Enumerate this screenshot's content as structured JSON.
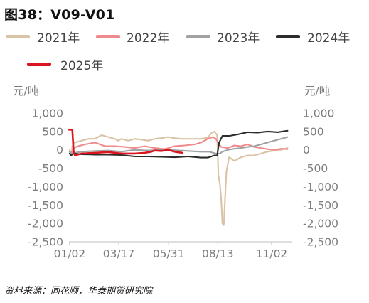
{
  "title": "图38：V09-V01",
  "source": "资料来源：同花顺，华泰期货研究院",
  "chart_data": {
    "type": "line",
    "title": "图38：V09-V01",
    "y_unit_left": "元/吨",
    "y_unit_right": "元/吨",
    "ylim": [
      -2500,
      1000
    ],
    "yticks": [
      1000,
      500,
      0,
      -500,
      -1000,
      -1500,
      -2000,
      -2500
    ],
    "ytick_labels": [
      "1,000",
      "500",
      "0",
      "-500",
      "-1,000",
      "-1,500",
      "-2,000",
      "-2,500"
    ],
    "xlim": [
      1,
      336
    ],
    "xticks": [
      {
        "label": "01/02",
        "day": 2
      },
      {
        "label": "03/17",
        "day": 76
      },
      {
        "label": "05/31",
        "day": 151
      },
      {
        "label": "08/13",
        "day": 225
      },
      {
        "label": "11/02",
        "day": 306
      }
    ],
    "grid": false,
    "legend_position": "top",
    "series": [
      {
        "name": "2021年",
        "color": "#d9c3a5",
        "points": [
          [
            2,
            0
          ],
          [
            5,
            -150
          ],
          [
            6,
            100
          ],
          [
            10,
            200
          ],
          [
            20,
            250
          ],
          [
            30,
            300
          ],
          [
            40,
            300
          ],
          [
            50,
            400
          ],
          [
            60,
            350
          ],
          [
            70,
            300
          ],
          [
            75,
            250
          ],
          [
            80,
            300
          ],
          [
            90,
            250
          ],
          [
            100,
            300
          ],
          [
            110,
            280
          ],
          [
            120,
            250
          ],
          [
            130,
            300
          ],
          [
            140,
            320
          ],
          [
            150,
            350
          ],
          [
            160,
            320
          ],
          [
            170,
            300
          ],
          [
            180,
            300
          ],
          [
            190,
            300
          ],
          [
            200,
            300
          ],
          [
            210,
            330
          ],
          [
            215,
            450
          ],
          [
            220,
            500
          ],
          [
            224,
            400
          ],
          [
            226,
            -700
          ],
          [
            228,
            -900
          ],
          [
            230,
            -1300
          ],
          [
            232,
            -2000
          ],
          [
            234,
            -2050
          ],
          [
            236,
            -1300
          ],
          [
            238,
            -600
          ],
          [
            242,
            -200
          ],
          [
            250,
            -300
          ],
          [
            260,
            -200
          ],
          [
            270,
            -150
          ],
          [
            280,
            -150
          ],
          [
            290,
            -100
          ],
          [
            300,
            -50
          ],
          [
            310,
            -20
          ],
          [
            320,
            0
          ],
          [
            330,
            50
          ]
        ]
      },
      {
        "name": "2022年",
        "color": "#f08a8c",
        "points": [
          [
            2,
            -50
          ],
          [
            4,
            -100
          ],
          [
            8,
            50
          ],
          [
            15,
            100
          ],
          [
            25,
            150
          ],
          [
            40,
            200
          ],
          [
            55,
            100
          ],
          [
            70,
            100
          ],
          [
            85,
            80
          ],
          [
            100,
            50
          ],
          [
            115,
            100
          ],
          [
            130,
            50
          ],
          [
            145,
            20
          ],
          [
            160,
            100
          ],
          [
            175,
            120
          ],
          [
            190,
            150
          ],
          [
            200,
            200
          ],
          [
            210,
            300
          ],
          [
            218,
            350
          ],
          [
            222,
            300
          ],
          [
            230,
            80
          ],
          [
            240,
            50
          ],
          [
            250,
            120
          ],
          [
            260,
            100
          ],
          [
            270,
            150
          ],
          [
            280,
            80
          ],
          [
            290,
            50
          ],
          [
            300,
            20
          ],
          [
            310,
            0
          ],
          [
            320,
            30
          ],
          [
            330,
            20
          ]
        ]
      },
      {
        "name": "2023年",
        "color": "#9fa1a3",
        "points": [
          [
            2,
            -50
          ],
          [
            6,
            -100
          ],
          [
            10,
            -80
          ],
          [
            20,
            -50
          ],
          [
            40,
            -30
          ],
          [
            60,
            -20
          ],
          [
            80,
            -50
          ],
          [
            100,
            0
          ],
          [
            120,
            -20
          ],
          [
            140,
            0
          ],
          [
            160,
            -10
          ],
          [
            180,
            -30
          ],
          [
            200,
            -50
          ],
          [
            212,
            -50
          ],
          [
            222,
            -100
          ],
          [
            228,
            -100
          ],
          [
            232,
            -50
          ],
          [
            240,
            0
          ],
          [
            250,
            30
          ],
          [
            260,
            50
          ],
          [
            270,
            80
          ],
          [
            280,
            100
          ],
          [
            290,
            150
          ],
          [
            300,
            200
          ],
          [
            310,
            250
          ],
          [
            320,
            300
          ],
          [
            330,
            350
          ]
        ]
      },
      {
        "name": "2024年",
        "color": "#2d2d2d",
        "points": [
          [
            2,
            -100
          ],
          [
            4,
            -150
          ],
          [
            8,
            -100
          ],
          [
            20,
            -120
          ],
          [
            40,
            -130
          ],
          [
            60,
            -130
          ],
          [
            80,
            -140
          ],
          [
            100,
            -180
          ],
          [
            120,
            -180
          ],
          [
            140,
            -190
          ],
          [
            160,
            -200
          ],
          [
            180,
            -180
          ],
          [
            200,
            -210
          ],
          [
            210,
            -210
          ],
          [
            220,
            -150
          ],
          [
            224,
            -150
          ],
          [
            227,
            200
          ],
          [
            232,
            380
          ],
          [
            242,
            380
          ],
          [
            255,
            420
          ],
          [
            270,
            480
          ],
          [
            285,
            470
          ],
          [
            300,
            500
          ],
          [
            315,
            480
          ],
          [
            330,
            520
          ]
        ]
      },
      {
        "name": "2025年",
        "color": "#d9151e",
        "points": [
          [
            1,
            550
          ],
          [
            6,
            550
          ],
          [
            8,
            -50
          ],
          [
            10,
            -150
          ],
          [
            20,
            -100
          ],
          [
            40,
            -80
          ],
          [
            60,
            -60
          ],
          [
            80,
            -100
          ],
          [
            100,
            -100
          ],
          [
            115,
            -80
          ],
          [
            125,
            -50
          ],
          [
            130,
            -20
          ],
          [
            140,
            -30
          ],
          [
            150,
            0
          ],
          [
            160,
            -50
          ],
          [
            172,
            -80
          ]
        ]
      }
    ]
  }
}
